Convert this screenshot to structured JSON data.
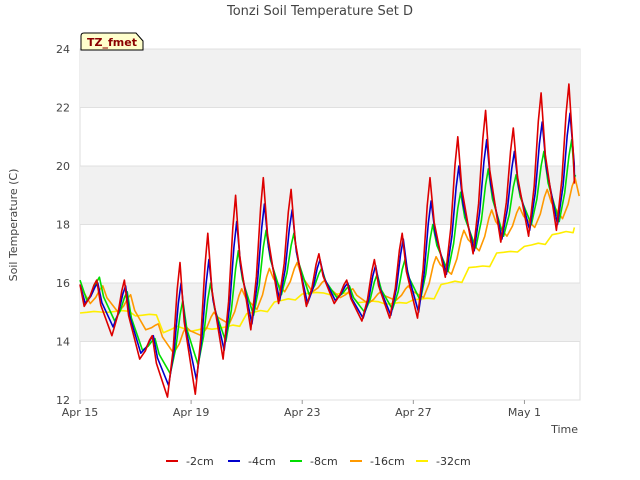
{
  "chart_data": {
    "type": "line",
    "title": "Tonzi Soil Temperature Set D",
    "xlabel": "Time",
    "ylabel": "Soil Temperature (C)",
    "station_tag": "TZ_fmet",
    "x_ticks": [
      "Apr 15",
      "Apr 19",
      "Apr 23",
      "Apr 27",
      "May 1"
    ],
    "y_ticks": [
      "12",
      "14",
      "16",
      "18",
      "20",
      "22",
      "24"
    ],
    "ylim": [
      12,
      24
    ],
    "x_range_days": [
      0,
      18
    ],
    "grid": true,
    "legend_position": "bottom",
    "series": [
      {
        "name": "-2cm",
        "color": "#dd0000"
      },
      {
        "name": "-4cm",
        "color": "#0000cc"
      },
      {
        "name": "-8cm",
        "color": "#00dd00"
      },
      {
        "name": "-16cm",
        "color": "#ff9900"
      },
      {
        "name": "-32cm",
        "color": "#ffee00"
      }
    ],
    "daily": [
      {
        "date": "Apr 15",
        "max": [
          16.1,
          16.0,
          16.2,
          15.9,
          15.0
        ],
        "min": [
          15.2,
          15.3,
          15.4,
          15.3,
          15.0
        ]
      },
      {
        "date": "Apr 16",
        "max": [
          16.1,
          15.9,
          15.7,
          15.6,
          15.05
        ],
        "min": [
          14.2,
          14.5,
          14.7,
          15.0,
          15.0
        ]
      },
      {
        "date": "Apr 17",
        "max": [
          14.2,
          14.2,
          14.1,
          14.6,
          14.9
        ],
        "min": [
          13.4,
          13.6,
          13.7,
          14.4,
          14.9
        ]
      },
      {
        "date": "Apr 18",
        "max": [
          16.7,
          16.0,
          15.4,
          14.5,
          14.6
        ],
        "min": [
          12.1,
          12.5,
          12.9,
          13.6,
          14.2
        ]
      },
      {
        "date": "Apr 19",
        "max": [
          17.7,
          16.8,
          16.0,
          15.0,
          14.5
        ],
        "min": [
          12.2,
          12.7,
          13.2,
          14.2,
          14.3
        ]
      },
      {
        "date": "Apr 20",
        "max": [
          19.0,
          18.1,
          17.1,
          15.8,
          14.6
        ],
        "min": [
          13.4,
          13.7,
          14.0,
          14.6,
          14.4
        ]
      },
      {
        "date": "Apr 21",
        "max": [
          19.6,
          18.7,
          17.8,
          16.5,
          15.1
        ],
        "min": [
          14.4,
          14.6,
          14.9,
          15.1,
          14.9
        ]
      },
      {
        "date": "Apr 22",
        "max": [
          19.2,
          18.5,
          17.7,
          16.7,
          15.5
        ],
        "min": [
          15.3,
          15.4,
          15.6,
          15.7,
          15.3
        ]
      },
      {
        "date": "Apr 23",
        "max": [
          17.0,
          16.8,
          16.5,
          16.1,
          15.7
        ],
        "min": [
          15.2,
          15.3,
          15.6,
          15.7,
          15.6
        ]
      },
      {
        "date": "Apr 24",
        "max": [
          16.1,
          16.0,
          15.9,
          15.8,
          15.65
        ],
        "min": [
          15.3,
          15.4,
          15.5,
          15.5,
          15.6
        ]
      },
      {
        "date": "Apr 25",
        "max": [
          16.8,
          16.6,
          16.3,
          15.7,
          15.4
        ],
        "min": [
          14.7,
          14.8,
          15.0,
          15.3,
          15.3
        ]
      },
      {
        "date": "Apr 26",
        "max": [
          17.7,
          17.5,
          16.8,
          15.9,
          15.3
        ],
        "min": [
          14.8,
          14.9,
          15.1,
          15.4,
          15.3
        ]
      },
      {
        "date": "Apr 27",
        "max": [
          19.6,
          18.8,
          18.0,
          16.9,
          15.5
        ],
        "min": [
          14.8,
          15.0,
          15.4,
          15.5,
          15.4
        ]
      },
      {
        "date": "Apr 28",
        "max": [
          21.0,
          20.0,
          19.1,
          17.8,
          16.1
        ],
        "min": [
          16.2,
          16.3,
          16.4,
          16.3,
          15.9
        ]
      },
      {
        "date": "Apr 29",
        "max": [
          21.9,
          20.9,
          19.9,
          18.5,
          16.6
        ],
        "min": [
          17.0,
          17.1,
          17.2,
          17.1,
          16.5
        ]
      },
      {
        "date": "Apr 30",
        "max": [
          21.3,
          20.5,
          19.7,
          18.6,
          17.1
        ],
        "min": [
          17.4,
          17.5,
          17.6,
          17.6,
          17.0
        ]
      },
      {
        "date": "May 1",
        "max": [
          22.5,
          21.5,
          20.5,
          19.2,
          17.4
        ],
        "min": [
          17.6,
          17.8,
          18.0,
          17.9,
          17.2
        ]
      },
      {
        "date": "May 2",
        "max": [
          22.8,
          21.8,
          20.9,
          19.6,
          17.8
        ],
        "min": [
          17.8,
          18.0,
          18.1,
          18.2,
          17.6
        ]
      }
    ],
    "end_values": [
      19.4,
      19.6,
      19.7,
      19.5,
      17.9
    ]
  }
}
